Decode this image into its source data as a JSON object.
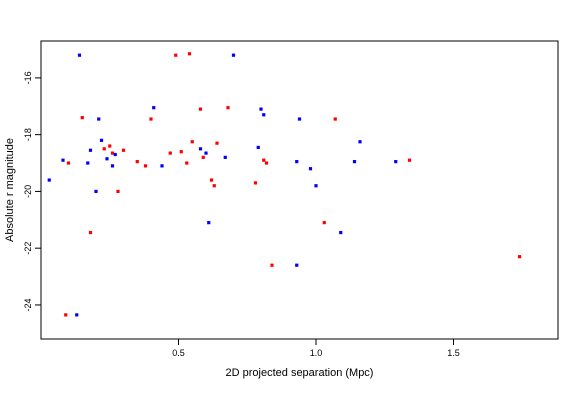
{
  "chart_data": {
    "type": "scatter",
    "title": "",
    "xlabel": "2D projected separation (Mpc)",
    "ylabel": "Absolute r magnitude",
    "xlim": [
      0.0,
      1.88
    ],
    "ylim": [
      -14.7,
      -25.2
    ],
    "y_reversed": true,
    "xticks": [
      0.5,
      1.0,
      1.5
    ],
    "xtick_labels": [
      "0.5",
      "1.0",
      "1.5"
    ],
    "yticks": [
      -16,
      -18,
      -20,
      -22,
      -24
    ],
    "ytick_labels": [
      "-16",
      "-18",
      "-20",
      "-22",
      "-24"
    ],
    "grid": false,
    "legend": "none",
    "series": [
      {
        "color": "#ff0000",
        "points": [
          [
            0.09,
            -24.35
          ],
          [
            0.1,
            -19.0
          ],
          [
            0.15,
            -17.4
          ],
          [
            0.18,
            -21.45
          ],
          [
            0.23,
            -18.5
          ],
          [
            0.25,
            -18.4
          ],
          [
            0.26,
            -18.65
          ],
          [
            0.28,
            -20.0
          ],
          [
            0.3,
            -18.55
          ],
          [
            0.35,
            -18.95
          ],
          [
            0.38,
            -19.1
          ],
          [
            0.4,
            -17.45
          ],
          [
            0.47,
            -18.65
          ],
          [
            0.49,
            -15.2
          ],
          [
            0.51,
            -18.6
          ],
          [
            0.53,
            -19.0
          ],
          [
            0.54,
            -15.15
          ],
          [
            0.55,
            -18.25
          ],
          [
            0.58,
            -17.1
          ],
          [
            0.59,
            -18.8
          ],
          [
            0.62,
            -19.6
          ],
          [
            0.63,
            -19.8
          ],
          [
            0.64,
            -18.3
          ],
          [
            0.68,
            -17.05
          ],
          [
            0.78,
            -19.7
          ],
          [
            0.81,
            -18.9
          ],
          [
            0.82,
            -19.0
          ],
          [
            0.84,
            -22.6
          ],
          [
            1.03,
            -21.1
          ],
          [
            1.07,
            -17.45
          ],
          [
            1.34,
            -18.9
          ],
          [
            1.74,
            -22.3
          ]
        ]
      },
      {
        "color": "#0000ff",
        "points": [
          [
            0.03,
            -19.6
          ],
          [
            0.08,
            -18.9
          ],
          [
            0.13,
            -24.35
          ],
          [
            0.14,
            -15.2
          ],
          [
            0.17,
            -19.0
          ],
          [
            0.18,
            -18.55
          ],
          [
            0.2,
            -20.0
          ],
          [
            0.21,
            -17.45
          ],
          [
            0.22,
            -18.2
          ],
          [
            0.24,
            -18.85
          ],
          [
            0.26,
            -19.1
          ],
          [
            0.27,
            -18.7
          ],
          [
            0.41,
            -17.05
          ],
          [
            0.44,
            -19.1
          ],
          [
            0.58,
            -18.5
          ],
          [
            0.6,
            -18.65
          ],
          [
            0.61,
            -21.1
          ],
          [
            0.67,
            -18.8
          ],
          [
            0.7,
            -15.2
          ],
          [
            0.79,
            -18.45
          ],
          [
            0.8,
            -17.1
          ],
          [
            0.81,
            -17.3
          ],
          [
            0.93,
            -18.95
          ],
          [
            0.93,
            -22.6
          ],
          [
            0.94,
            -17.45
          ],
          [
            0.98,
            -19.2
          ],
          [
            1.0,
            -19.8
          ],
          [
            1.09,
            -21.45
          ],
          [
            1.14,
            -18.95
          ],
          [
            1.16,
            -18.25
          ],
          [
            1.29,
            -18.95
          ]
        ]
      }
    ]
  }
}
